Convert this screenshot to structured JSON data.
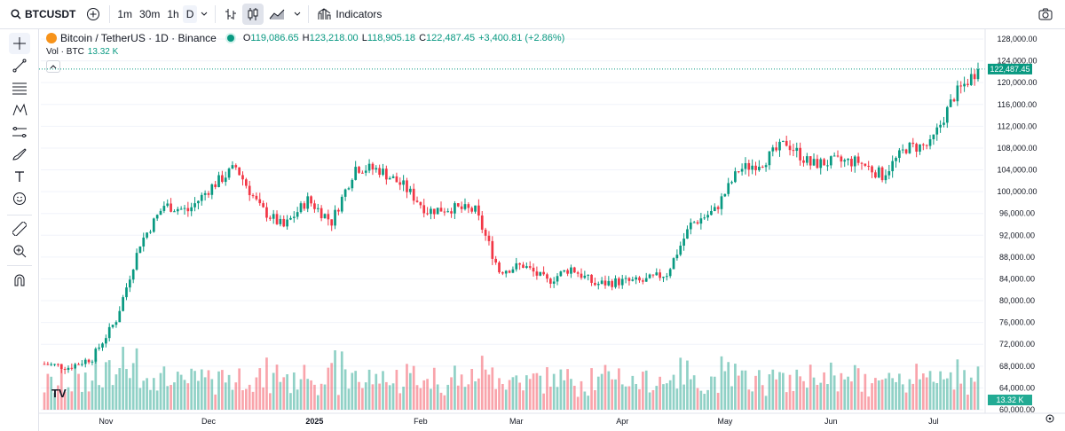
{
  "toolbar": {
    "symbol": "BTCUSDT",
    "timeframes": [
      "1m",
      "30m",
      "1h",
      "D"
    ],
    "active_timeframe": "D",
    "indicators_label": "Indicators"
  },
  "legend": {
    "title": "Bitcoin / TetherUS · 1D · Binance",
    "o_label": "O",
    "o": "119,086.65",
    "h_label": "H",
    "h": "123,218.00",
    "l_label": "L",
    "l": "118,905.18",
    "c_label": "C",
    "c": "122,487.45",
    "change": "+3,400.81 (+2.86%)",
    "vol_label": "Vol · BTC",
    "vol_value": "13.32 K"
  },
  "chart_data": {
    "type": "candlestick",
    "price_axis": [
      "128,000.00",
      "124,000.00",
      "120,000.00",
      "116,000.00",
      "112,000.00",
      "108,000.00",
      "104,000.00",
      "100,000.00",
      "96,000.00",
      "92,000.00",
      "88,000.00",
      "84,000.00",
      "80,000.00",
      "76,000.00",
      "72,000.00",
      "68,000.00",
      "64,000.00",
      "60,000.00"
    ],
    "ylim": [
      60000,
      128000
    ],
    "time_axis": [
      "Nov",
      "Dec",
      "2025",
      "Feb",
      "Mar",
      "Apr",
      "May",
      "Jun",
      "Jul"
    ],
    "last_price_label": "122,487.45",
    "last_price": 122487.45,
    "last_volume_label": "13.32 K",
    "up_color": "#089981",
    "down_color": "#f23645",
    "series_close_weekly": [
      {
        "date": "2024-10-14",
        "close": 68400
      },
      {
        "date": "2024-10-21",
        "close": 67800
      },
      {
        "date": "2024-10-28",
        "close": 69500
      },
      {
        "date": "2024-11-04",
        "close": 76500
      },
      {
        "date": "2024-11-11",
        "close": 90500
      },
      {
        "date": "2024-11-18",
        "close": 97500
      },
      {
        "date": "2024-11-25",
        "close": 96500
      },
      {
        "date": "2024-12-02",
        "close": 101000
      },
      {
        "date": "2024-12-09",
        "close": 104500
      },
      {
        "date": "2024-12-16",
        "close": 97000
      },
      {
        "date": "2024-12-23",
        "close": 93500
      },
      {
        "date": "2024-12-30",
        "close": 98500
      },
      {
        "date": "2025-01-06",
        "close": 94500
      },
      {
        "date": "2025-01-13",
        "close": 104500
      },
      {
        "date": "2025-01-20",
        "close": 104000
      },
      {
        "date": "2025-01-27",
        "close": 101000
      },
      {
        "date": "2025-02-03",
        "close": 96500
      },
      {
        "date": "2025-02-10",
        "close": 97000
      },
      {
        "date": "2025-02-17",
        "close": 96500
      },
      {
        "date": "2025-02-24",
        "close": 85500
      },
      {
        "date": "2025-03-03",
        "close": 86500
      },
      {
        "date": "2025-03-10",
        "close": 83500
      },
      {
        "date": "2025-03-17",
        "close": 86000
      },
      {
        "date": "2025-03-24",
        "close": 83000
      },
      {
        "date": "2025-03-31",
        "close": 83500
      },
      {
        "date": "2025-04-07",
        "close": 83500
      },
      {
        "date": "2025-04-14",
        "close": 85000
      },
      {
        "date": "2025-04-21",
        "close": 94000
      },
      {
        "date": "2025-04-28",
        "close": 96500
      },
      {
        "date": "2025-05-05",
        "close": 104000
      },
      {
        "date": "2025-05-12",
        "close": 105500
      },
      {
        "date": "2025-05-19",
        "close": 109000
      },
      {
        "date": "2025-05-26",
        "close": 105000
      },
      {
        "date": "2025-06-02",
        "close": 105500
      },
      {
        "date": "2025-06-09",
        "close": 105500
      },
      {
        "date": "2025-06-16",
        "close": 103000
      },
      {
        "date": "2025-06-23",
        "close": 108000
      },
      {
        "date": "2025-06-30",
        "close": 108500
      },
      {
        "date": "2025-07-07",
        "close": 117500
      },
      {
        "date": "2025-07-14",
        "close": 122487.45
      }
    ]
  }
}
